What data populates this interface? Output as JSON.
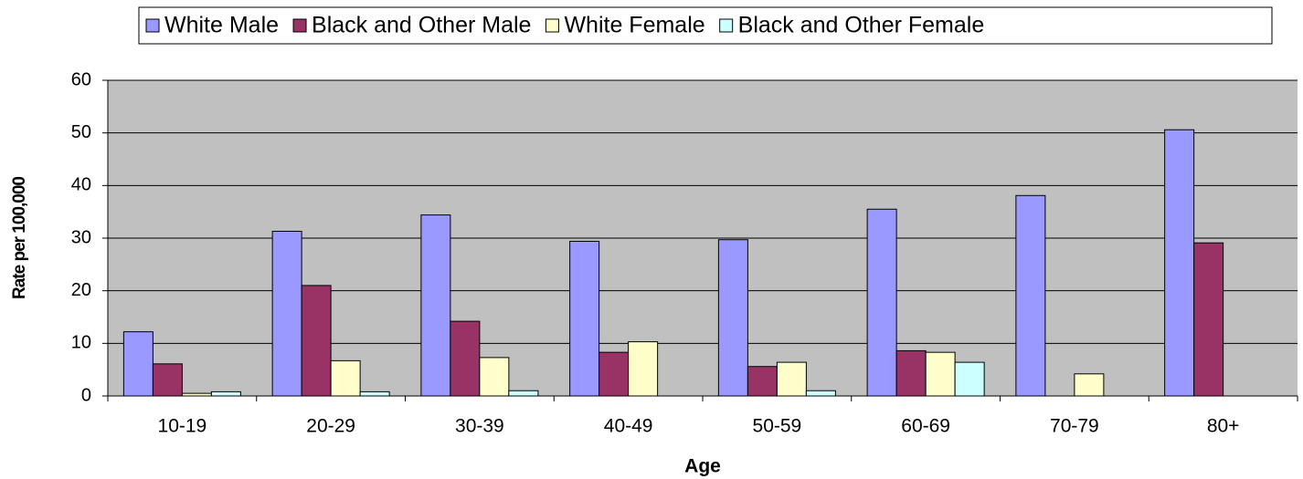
{
  "chart_data": {
    "type": "bar",
    "x_label": "Age",
    "y_label": "Rate per 100,000",
    "categories": [
      "10-19",
      "20-29",
      "30-39",
      "40-49",
      "50-59",
      "60-69",
      "70-79",
      "80+"
    ],
    "series": [
      {
        "name": "White Male",
        "color": "#9999ff",
        "values": [
          12.2,
          31.3,
          34.4,
          29.4,
          29.7,
          35.5,
          38.1,
          50.6
        ]
      },
      {
        "name": "Black and Other Male",
        "color": "#993366",
        "values": [
          6.1,
          21,
          14.2,
          8.3,
          5.6,
          8.6,
          null,
          29.1
        ]
      },
      {
        "name": "White Female",
        "color": "#ffffcc",
        "values": [
          0.5,
          6.7,
          7.3,
          10.3,
          6.4,
          8.3,
          4.2,
          null
        ]
      },
      {
        "name": "Black and Other Female",
        "color": "#ccffff",
        "values": [
          0.8,
          0.8,
          1.0,
          null,
          1.0,
          6.4,
          null,
          null
        ]
      }
    ],
    "ylim": [
      0,
      60
    ],
    "yticks": [
      0,
      10,
      20,
      30,
      40,
      50,
      60
    ],
    "grid": true,
    "legend": "top"
  }
}
